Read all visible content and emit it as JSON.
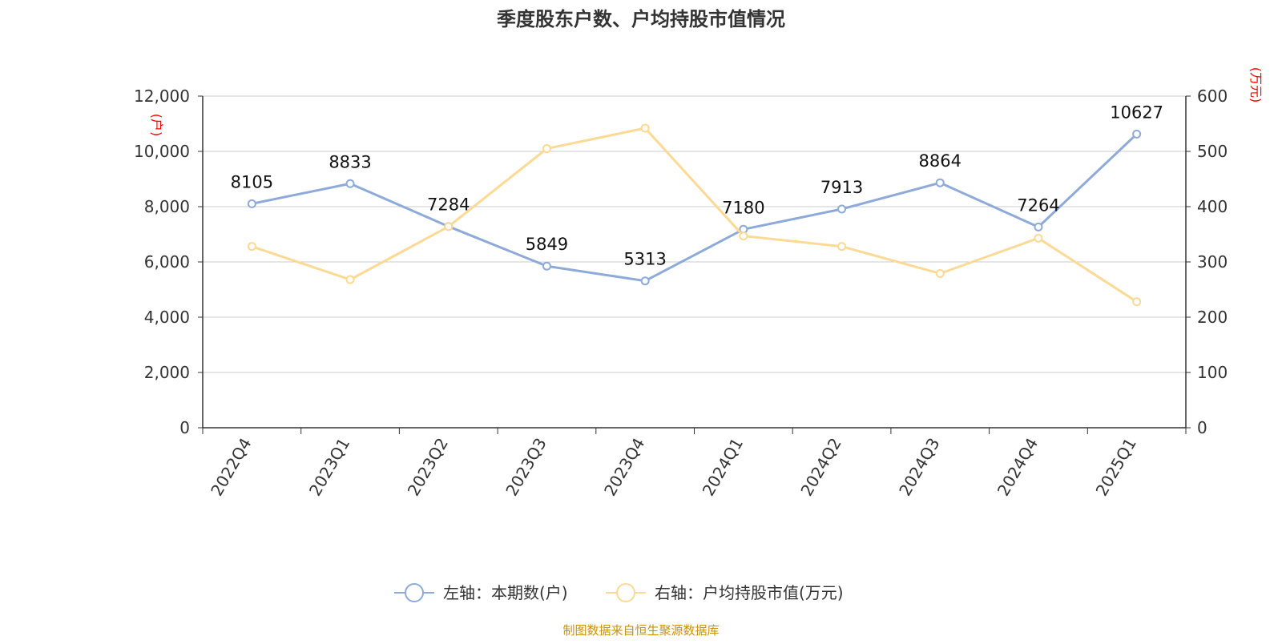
{
  "chart_data": {
    "type": "line",
    "title": "季度股东户数、户均持股市值情况",
    "categories": [
      "2022Q4",
      "2023Q1",
      "2023Q2",
      "2023Q3",
      "2023Q4",
      "2024Q1",
      "2024Q2",
      "2024Q3",
      "2024Q4",
      "2025Q1"
    ],
    "series": [
      {
        "name": "左轴：本期数(户)",
        "axis": "left",
        "color": "#8eaad8",
        "values": [
          8105,
          8833,
          7284,
          5849,
          5313,
          7180,
          7913,
          8864,
          7264,
          10627
        ],
        "data_labels": [
          "8105",
          "8833",
          "7284",
          "5849",
          "5313",
          "7180",
          "7913",
          "8864",
          "7264",
          "10627"
        ]
      },
      {
        "name": "右轴：户均持股市值(万元)",
        "axis": "right",
        "color": "#fcd994",
        "values": [
          328,
          268,
          364,
          505,
          542,
          347,
          328,
          279,
          343,
          228
        ]
      }
    ],
    "y_left": {
      "unit": "(户)",
      "ylim": [
        0,
        12000
      ],
      "ticks": [
        0,
        2000,
        4000,
        6000,
        8000,
        10000,
        12000
      ],
      "tick_labels": [
        "0",
        "2,000",
        "4,000",
        "6,000",
        "8,000",
        "10,000",
        "12,000"
      ]
    },
    "y_right": {
      "unit": "(万元)",
      "ylim": [
        0,
        600
      ],
      "ticks": [
        0,
        100,
        200,
        300,
        400,
        500,
        600
      ],
      "tick_labels": [
        "0",
        "100",
        "200",
        "300",
        "400",
        "500",
        "600"
      ]
    },
    "grid": true,
    "legend_position": "bottom",
    "unit_color": "#ff0000",
    "axis_color": "#333333",
    "grid_color": "#cccccc"
  },
  "footer": {
    "source": "制图数据来自恒生聚源数据库",
    "color": "#c8920a"
  }
}
